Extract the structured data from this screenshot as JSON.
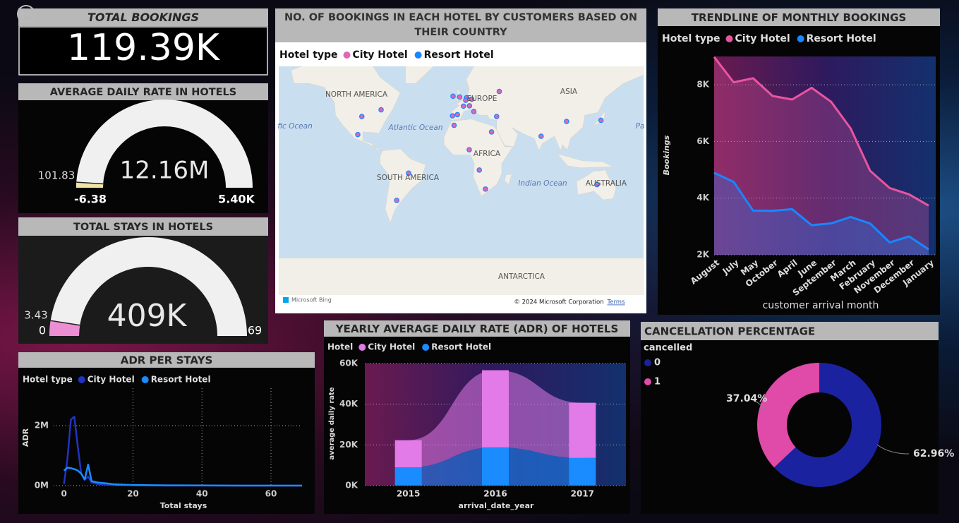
{
  "chart_data": [
    {
      "type": "card",
      "title": "TOTAL BOOKINGS",
      "value": {
        "value": 119390,
        "label": "119.39K"
      }
    },
    {
      "type": "gauge",
      "title": "AVERAGE DAILY RATE IN HOTELS",
      "value": {
        "value": 12160000,
        "label": "12.16M"
      },
      "min": -6.38,
      "max": {
        "value": 5400,
        "label": "5.40K"
      },
      "target": 101.83,
      "color": "#f3e4a6"
    },
    {
      "type": "gauge",
      "title": "TOTAL STAYS IN HOTELS",
      "value": {
        "value": 409000,
        "label": "409K"
      },
      "min": 0,
      "max": 69,
      "target": 3.43,
      "color": "#ec8ed2"
    },
    {
      "type": "map",
      "title": "NO. OF BOOKINGS IN EACH HOTEL BY CUSTOMERS BASED ON THEIR COUNTRY",
      "legend_title": "Hotel type",
      "series": [
        {
          "name": "City Hotel",
          "color": "#e066b8"
        },
        {
          "name": "Resort Hotel",
          "color": "#1a86ff"
        }
      ],
      "place_labels": [
        "NORTH AMERICA",
        "EUROPE",
        "ASIA",
        "fic Ocean",
        "Atlantic Ocean",
        "AFRICA",
        "SOUTH AMERICA",
        "Indian Ocean",
        "AUSTRALIA",
        "Pa",
        "ANTARCTICA"
      ],
      "points": [
        {
          "lon": -8.5,
          "lat": 39.5
        },
        {
          "lon": -3.7,
          "lat": 40.4
        },
        {
          "lon": 2.3,
          "lat": 46.6
        },
        {
          "lon": -1.5,
          "lat": 52.5
        },
        {
          "lon": -8,
          "lat": 53
        },
        {
          "lon": 10.4,
          "lat": 51.2
        },
        {
          "lon": 12.5,
          "lat": 42.8
        },
        {
          "lon": 5.3,
          "lat": 52.1
        },
        {
          "lon": 4.5,
          "lat": 50.5
        },
        {
          "lon": 8.2,
          "lat": 46.8
        },
        {
          "lon": -51.9,
          "lat": -14.2
        },
        {
          "lon": -98,
          "lat": 39
        },
        {
          "lon": 104,
          "lat": 35
        },
        {
          "lon": 37.6,
          "lat": 55.8
        },
        {
          "lon": 17.9,
          "lat": -11.2
        },
        {
          "lon": -7,
          "lat": 31.8
        },
        {
          "lon": 134,
          "lat": -25
        },
        {
          "lon": 78.9,
          "lat": 22
        },
        {
          "lon": -102,
          "lat": 23.6
        },
        {
          "lon": -63.6,
          "lat": -38.4
        },
        {
          "lon": 24,
          "lat": -29
        },
        {
          "lon": 138,
          "lat": 36
        },
        {
          "lon": -79,
          "lat": 44
        },
        {
          "lon": 35,
          "lat": 39
        },
        {
          "lon": 30,
          "lat": 26
        },
        {
          "lon": 8,
          "lat": 9
        }
      ],
      "attribution": "© 2024 Microsoft Corporation",
      "terms": "Terms",
      "provider": "Microsoft Bing"
    },
    {
      "type": "line",
      "title": "TRENDLINE OF MONTHLY BOOKINGS",
      "legend_title": "Hotel type",
      "x_label": "customer arrival month",
      "y_label": "Bookings",
      "categories": [
        "August",
        "July",
        "May",
        "October",
        "April",
        "June",
        "September",
        "March",
        "February",
        "November",
        "December",
        "January"
      ],
      "series": [
        {
          "name": "City Hotel",
          "color": "#e8559f",
          "values": [
            8983,
            8088,
            8232,
            7605,
            7480,
            7894,
            7400,
            6458,
            4965,
            4357,
            4132,
            3736
          ]
        },
        {
          "name": "Resort Hotel",
          "color": "#1a86ff",
          "values": [
            4894,
            4573,
            3559,
            3555,
            3609,
            3045,
            3108,
            3336,
            3103,
            2437,
            2648,
            2193
          ]
        }
      ],
      "ylim": [
        2000,
        9000
      ],
      "yticks": [
        {
          "value": 2000,
          "label": "2K"
        },
        {
          "value": 4000,
          "label": "4K"
        },
        {
          "value": 6000,
          "label": "6K"
        },
        {
          "value": 8000,
          "label": "8K"
        }
      ],
      "grid": true
    },
    {
      "type": "line",
      "title": "ADR PER STAYS",
      "legend_title": "Hotel type",
      "x_label": "Total stays",
      "y_label": "ADR",
      "x": [
        0,
        1,
        2,
        3,
        4,
        5,
        6,
        7,
        8,
        9,
        10,
        12,
        14,
        15,
        20,
        30,
        40,
        50,
        60,
        69
      ],
      "series": [
        {
          "name": "City Hotel",
          "color": "#2233c0",
          "values": [
            50000,
            900000,
            2200000,
            2300000,
            1300000,
            400000,
            200000,
            300000,
            100000,
            80000,
            50000,
            30000,
            20000,
            60000,
            10000,
            0,
            0,
            0,
            0,
            0
          ]
        },
        {
          "name": "Resort Hotel",
          "color": "#1a8cff",
          "values": [
            500000,
            600000,
            580000,
            550000,
            500000,
            400000,
            200000,
            700000,
            150000,
            120000,
            100000,
            80000,
            50000,
            30000,
            20000,
            10000,
            5000,
            0,
            0,
            0
          ]
        }
      ],
      "xlim": [
        -3,
        69
      ],
      "xticks": [
        0,
        20,
        40,
        60
      ],
      "ylim": [
        0,
        3250000
      ],
      "yticks": [
        {
          "value": 0,
          "label": "0M"
        },
        {
          "value": 2000000,
          "label": "2M"
        }
      ],
      "grid": true
    },
    {
      "type": "bar",
      "stacked": true,
      "title": "YEARLY AVERAGE DAILY RATE (ADR) OF HOTELS",
      "legend_title": "Hotel",
      "x_label": "arrival_date_year",
      "y_label": "average daily rate",
      "categories": [
        "2015",
        "2016",
        "2017"
      ],
      "series": [
        {
          "name": "City Hotel",
          "color": "#e27ae8",
          "values": [
            13300,
            37900,
            27100
          ]
        },
        {
          "name": "Resort Hotel",
          "color": "#1a8cff",
          "values": [
            9000,
            18800,
            13600
          ]
        }
      ],
      "ylim": [
        0,
        60000
      ],
      "yticks": [
        {
          "value": 0,
          "label": "0K"
        },
        {
          "value": 20000,
          "label": "20K"
        },
        {
          "value": 40000,
          "label": "40K"
        },
        {
          "value": 60000,
          "label": "60K"
        }
      ],
      "grid": true
    },
    {
      "type": "pie",
      "donut": true,
      "title": "CANCELLATION PERCENTAGE",
      "legend_title": "cancelled",
      "categories": [
        "0",
        "1"
      ],
      "values": [
        62.96,
        37.04
      ],
      "value_labels": [
        "62.96%",
        "37.04%"
      ],
      "colors": [
        "#1b22a0",
        "#e04aa8"
      ]
    }
  ]
}
